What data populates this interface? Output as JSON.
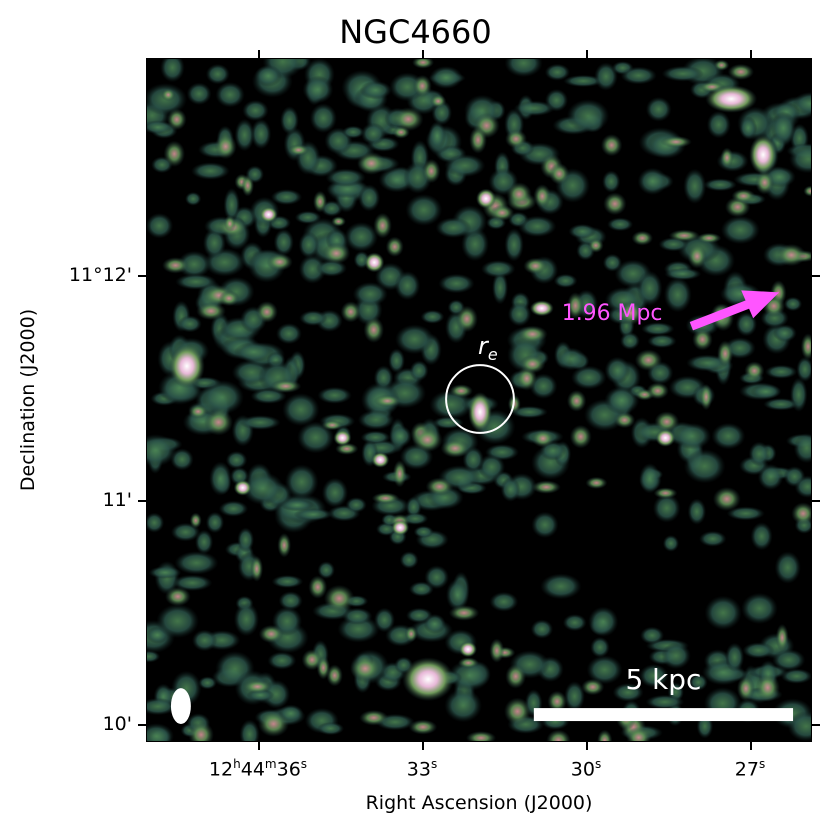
{
  "title": "NGC4660",
  "axes": {
    "xlabel": "Right Ascension (J2000)",
    "ylabel": "Declination (J2000)",
    "xticks": [
      {
        "h": "12",
        "m": "44",
        "s": "36",
        "full": true
      },
      {
        "s": "33"
      },
      {
        "s": "30"
      },
      {
        "s": "27"
      }
    ],
    "yticks": [
      "11°12'",
      "11'",
      "10'"
    ]
  },
  "annotations": {
    "distance_label": "1.96 Mpc",
    "effective_radius_label": "r",
    "effective_radius_sub": "e",
    "scalebar_label": "5 kpc"
  },
  "colors": {
    "distance_arrow": "#ff55ff",
    "colormap": [
      "#000000",
      "#1f3a3a",
      "#3d7a4f",
      "#6f9a5a",
      "#c98a7a",
      "#e8a8c8",
      "#ffffff"
    ]
  }
}
